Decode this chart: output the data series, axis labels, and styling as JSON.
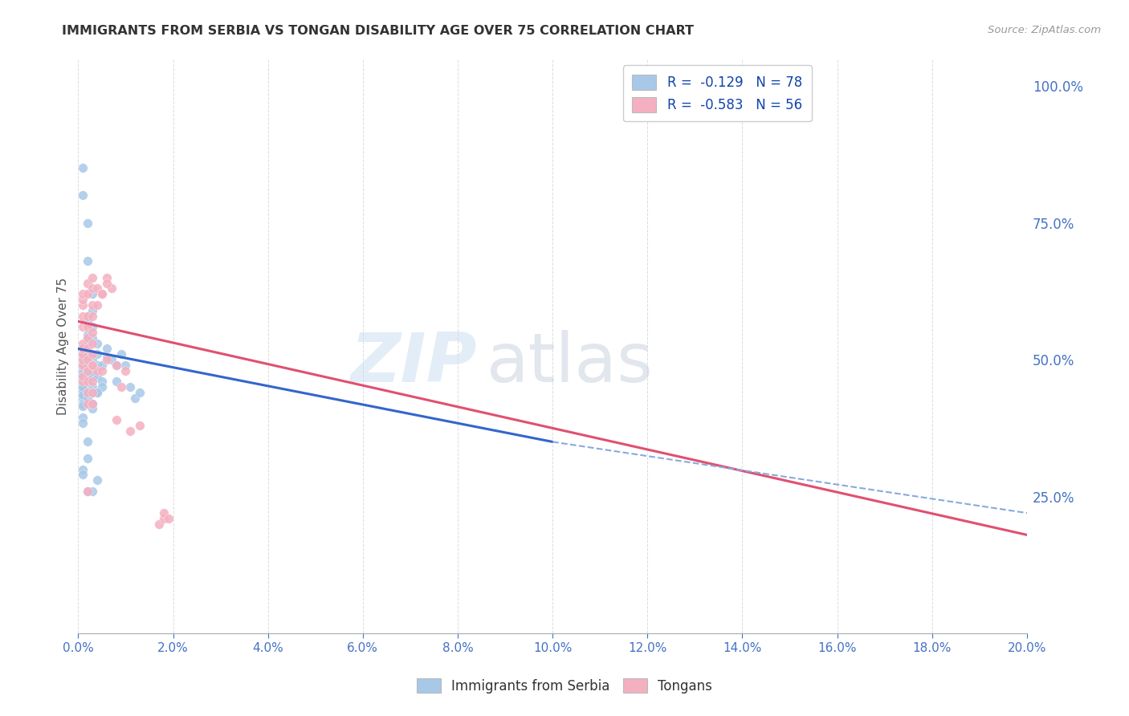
{
  "title": "IMMIGRANTS FROM SERBIA VS TONGAN DISABILITY AGE OVER 75 CORRELATION CHART",
  "source": "Source: ZipAtlas.com",
  "ylabel": "Disability Age Over 75",
  "legend_serbia_R": -0.129,
  "legend_serbia_N": 78,
  "legend_tongan_R": -0.583,
  "legend_tongan_N": 56,
  "watermark_zip": "ZIP",
  "watermark_atlas": "atlas",
  "serbia_color": "#a8c8e8",
  "tongan_color": "#f4b0c0",
  "serbia_line_color": "#3366cc",
  "tongan_line_color": "#e05070",
  "dash_color": "#88aadd",
  "right_tick_color": "#4472c4",
  "serbia_scatter_x": [
    0.001,
    0.001,
    0.001,
    0.001,
    0.001,
    0.001,
    0.001,
    0.001,
    0.001,
    0.001,
    0.001,
    0.001,
    0.001,
    0.001,
    0.001,
    0.001,
    0.001,
    0.001,
    0.001,
    0.001,
    0.002,
    0.002,
    0.002,
    0.002,
    0.002,
    0.002,
    0.002,
    0.002,
    0.002,
    0.002,
    0.002,
    0.002,
    0.002,
    0.002,
    0.003,
    0.003,
    0.003,
    0.003,
    0.003,
    0.003,
    0.003,
    0.003,
    0.003,
    0.003,
    0.003,
    0.004,
    0.004,
    0.004,
    0.004,
    0.004,
    0.004,
    0.005,
    0.005,
    0.005,
    0.006,
    0.006,
    0.007,
    0.008,
    0.008,
    0.009,
    0.01,
    0.011,
    0.012,
    0.013,
    0.001,
    0.001,
    0.002,
    0.002,
    0.001,
    0.001,
    0.002,
    0.003,
    0.001,
    0.001,
    0.002,
    0.002,
    0.003,
    0.004
  ],
  "serbia_scatter_y": [
    0.5,
    0.51,
    0.495,
    0.505,
    0.485,
    0.49,
    0.46,
    0.465,
    0.48,
    0.475,
    0.44,
    0.43,
    0.42,
    0.415,
    0.455,
    0.445,
    0.435,
    0.52,
    0.47,
    0.45,
    0.53,
    0.54,
    0.51,
    0.57,
    0.58,
    0.545,
    0.49,
    0.48,
    0.43,
    0.44,
    0.35,
    0.32,
    0.475,
    0.465,
    0.62,
    0.59,
    0.56,
    0.54,
    0.49,
    0.47,
    0.45,
    0.44,
    0.42,
    0.41,
    0.5,
    0.53,
    0.51,
    0.49,
    0.47,
    0.44,
    0.28,
    0.49,
    0.46,
    0.45,
    0.52,
    0.505,
    0.5,
    0.49,
    0.46,
    0.51,
    0.49,
    0.45,
    0.43,
    0.44,
    0.8,
    0.85,
    0.75,
    0.68,
    0.3,
    0.29,
    0.26,
    0.26,
    0.395,
    0.385,
    0.5,
    0.49,
    0.48,
    0.44
  ],
  "tongan_scatter_x": [
    0.001,
    0.001,
    0.001,
    0.001,
    0.001,
    0.001,
    0.001,
    0.001,
    0.001,
    0.001,
    0.001,
    0.001,
    0.002,
    0.002,
    0.002,
    0.002,
    0.002,
    0.002,
    0.002,
    0.002,
    0.002,
    0.002,
    0.002,
    0.003,
    0.003,
    0.003,
    0.003,
    0.003,
    0.003,
    0.003,
    0.003,
    0.003,
    0.003,
    0.003,
    0.004,
    0.004,
    0.004,
    0.005,
    0.005,
    0.006,
    0.006,
    0.007,
    0.008,
    0.008,
    0.009,
    0.01,
    0.011,
    0.013,
    0.017,
    0.018,
    0.018,
    0.019,
    0.002,
    0.003,
    0.005,
    0.006
  ],
  "tongan_scatter_y": [
    0.53,
    0.56,
    0.58,
    0.6,
    0.61,
    0.62,
    0.49,
    0.5,
    0.51,
    0.52,
    0.46,
    0.47,
    0.62,
    0.64,
    0.58,
    0.56,
    0.54,
    0.52,
    0.5,
    0.48,
    0.46,
    0.44,
    0.42,
    0.65,
    0.63,
    0.6,
    0.58,
    0.55,
    0.53,
    0.51,
    0.49,
    0.46,
    0.44,
    0.42,
    0.63,
    0.6,
    0.48,
    0.62,
    0.48,
    0.65,
    0.5,
    0.63,
    0.49,
    0.39,
    0.45,
    0.48,
    0.37,
    0.38,
    0.2,
    0.21,
    0.22,
    0.21,
    0.26,
    0.49,
    0.62,
    0.64
  ],
  "xmin": 0.0,
  "xmax": 0.2,
  "ymin": 0.0,
  "ymax": 1.05,
  "serbia_line_x0": 0.0,
  "serbia_line_x1": 0.1,
  "serbia_line_y0": 0.52,
  "serbia_line_y1": 0.35,
  "tongan_line_x0": 0.0,
  "tongan_line_x1": 0.2,
  "tongan_line_y0": 0.57,
  "tongan_line_y1": 0.18,
  "dash_line_x0": 0.1,
  "dash_line_x1": 0.2,
  "dash_line_y0": 0.35,
  "dash_line_y1": 0.22
}
